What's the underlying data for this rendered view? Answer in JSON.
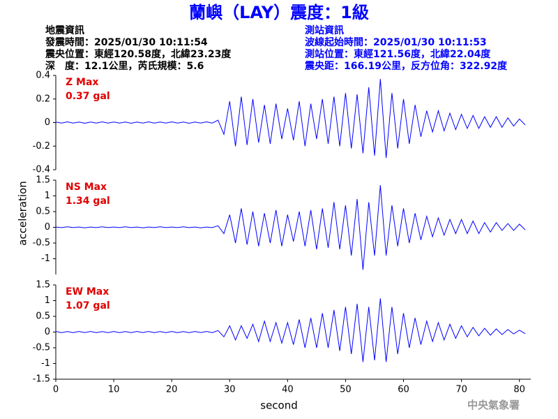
{
  "header": {
    "title": "蘭嶼（LAY）震度：1級",
    "left": [
      "地震資訊",
      "發震時間：2025/01/30 10:11:54",
      "震央位置：東經120.58度，北緯23.23度",
      "深　度：12.1公里，芮氏規模：5.6"
    ],
    "right": [
      "測站資訊",
      "波線起始時間：2025/01/30 10:11:53",
      "測站位置：東經121.56度，北緯22.04度",
      "震央距：166.19公里，反方位角：322.92度"
    ]
  },
  "footer": "中央氣象署",
  "chart_data": [
    {
      "type": "line",
      "annotations": [
        "Z Max",
        "0.37 gal"
      ],
      "color": "#0000ff",
      "xlim": [
        0,
        81
      ],
      "ylim": [
        -0.4,
        0.4
      ],
      "yticks": [
        0.4,
        0.2,
        0,
        -0.2,
        -0.4
      ],
      "x": [
        0,
        1,
        2,
        3,
        4,
        5,
        6,
        7,
        8,
        9,
        10,
        11,
        12,
        13,
        14,
        15,
        16,
        17,
        18,
        19,
        20,
        21,
        22,
        23,
        24,
        25,
        26,
        27,
        28,
        29,
        30,
        31,
        32,
        33,
        34,
        35,
        36,
        37,
        38,
        39,
        40,
        41,
        42,
        43,
        44,
        45,
        46,
        47,
        48,
        49,
        50,
        51,
        52,
        53,
        54,
        55,
        56,
        57,
        58,
        59,
        60,
        61,
        62,
        63,
        64,
        65,
        66,
        67,
        68,
        69,
        70,
        71,
        72,
        73,
        74,
        75,
        76,
        77,
        78,
        79,
        80,
        81
      ],
      "values": [
        0.004,
        -0.005,
        0.006,
        -0.004,
        0.005,
        -0.006,
        0.004,
        -0.005,
        0.006,
        -0.004,
        0.005,
        -0.005,
        0.004,
        -0.006,
        0.005,
        -0.004,
        0.006,
        -0.005,
        0.004,
        -0.005,
        0.006,
        -0.004,
        0.005,
        -0.006,
        0.004,
        -0.005,
        0.006,
        -0.004,
        0.02,
        -0.1,
        0.18,
        -0.2,
        0.22,
        -0.19,
        0.2,
        -0.17,
        0.15,
        -0.18,
        0.16,
        -0.14,
        0.12,
        -0.15,
        0.18,
        -0.2,
        0.16,
        -0.14,
        0.2,
        -0.18,
        0.22,
        -0.2,
        0.25,
        -0.22,
        0.24,
        -0.26,
        0.3,
        -0.28,
        0.37,
        -0.3,
        0.25,
        -0.22,
        0.2,
        -0.18,
        0.15,
        -0.12,
        0.1,
        -0.08,
        0.1,
        -0.07,
        0.08,
        -0.06,
        0.07,
        -0.05,
        0.06,
        -0.05,
        0.05,
        -0.04,
        0.05,
        -0.04,
        0.04,
        -0.03,
        0.03,
        -0.02
      ]
    },
    {
      "type": "line",
      "annotations": [
        "NS Max",
        "1.34 gal"
      ],
      "y_label": "acceleration",
      "color": "#0000ff",
      "xlim": [
        0,
        81
      ],
      "ylim": [
        -1.5,
        1.5
      ],
      "yticks": [
        1.5,
        1,
        0.5,
        0,
        -0.5,
        -1
      ],
      "x": [
        0,
        1,
        2,
        3,
        4,
        5,
        6,
        7,
        8,
        9,
        10,
        11,
        12,
        13,
        14,
        15,
        16,
        17,
        18,
        19,
        20,
        21,
        22,
        23,
        24,
        25,
        26,
        27,
        28,
        29,
        30,
        31,
        32,
        33,
        34,
        35,
        36,
        37,
        38,
        39,
        40,
        41,
        42,
        43,
        44,
        45,
        46,
        47,
        48,
        49,
        50,
        51,
        52,
        53,
        54,
        55,
        56,
        57,
        58,
        59,
        60,
        61,
        62,
        63,
        64,
        65,
        66,
        67,
        68,
        69,
        70,
        71,
        72,
        73,
        74,
        75,
        76,
        77,
        78,
        79,
        80,
        81
      ],
      "values": [
        0.01,
        -0.01,
        0.015,
        -0.01,
        0.01,
        -0.015,
        0.01,
        -0.01,
        0.015,
        -0.01,
        0.01,
        -0.01,
        0.015,
        -0.01,
        0.01,
        -0.015,
        0.01,
        -0.01,
        0.015,
        -0.01,
        0.01,
        -0.01,
        0.015,
        -0.01,
        0.01,
        -0.015,
        0.01,
        -0.01,
        0.05,
        -0.2,
        0.4,
        -0.5,
        0.6,
        -0.55,
        0.5,
        -0.6,
        0.45,
        -0.5,
        0.55,
        -0.6,
        0.4,
        -0.45,
        0.5,
        -0.6,
        0.55,
        -0.7,
        0.6,
        -0.65,
        0.8,
        -0.7,
        0.7,
        -0.9,
        0.9,
        -1.35,
        0.8,
        -0.9,
        1.34,
        -0.9,
        0.7,
        -0.6,
        0.6,
        -0.5,
        0.45,
        -0.4,
        0.35,
        -0.3,
        0.3,
        -0.25,
        0.25,
        -0.2,
        0.25,
        -0.2,
        0.2,
        -0.2,
        0.15,
        -0.15,
        0.15,
        -0.1,
        0.12,
        -0.1,
        0.1,
        -0.08
      ]
    },
    {
      "type": "line",
      "annotations": [
        "EW Max",
        "1.07 gal"
      ],
      "x_label": "second",
      "color": "#0000ff",
      "xlim": [
        0,
        81
      ],
      "ylim": [
        -1.5,
        1.5
      ],
      "yticks": [
        1.5,
        1,
        0.5,
        0,
        -0.5,
        -1,
        -1.5
      ],
      "xticks": [
        0,
        10,
        20,
        30,
        40,
        50,
        60,
        70,
        80
      ],
      "x": [
        0,
        1,
        2,
        3,
        4,
        5,
        6,
        7,
        8,
        9,
        10,
        11,
        12,
        13,
        14,
        15,
        16,
        17,
        18,
        19,
        20,
        21,
        22,
        23,
        24,
        25,
        26,
        27,
        28,
        29,
        30,
        31,
        32,
        33,
        34,
        35,
        36,
        37,
        38,
        39,
        40,
        41,
        42,
        43,
        44,
        45,
        46,
        47,
        48,
        49,
        50,
        51,
        52,
        53,
        54,
        55,
        56,
        57,
        58,
        59,
        60,
        61,
        62,
        63,
        64,
        65,
        66,
        67,
        68,
        69,
        70,
        71,
        72,
        73,
        74,
        75,
        76,
        77,
        78,
        79,
        80,
        81
      ],
      "values": [
        0.02,
        -0.02,
        0.015,
        -0.02,
        0.02,
        -0.015,
        0.02,
        -0.02,
        0.015,
        -0.02,
        0.02,
        -0.02,
        0.015,
        -0.02,
        0.02,
        -0.015,
        0.02,
        -0.02,
        0.015,
        -0.02,
        0.02,
        -0.02,
        0.015,
        -0.02,
        0.02,
        -0.015,
        0.02,
        -0.02,
        0.05,
        -0.15,
        0.2,
        -0.25,
        0.2,
        -0.2,
        0.25,
        -0.3,
        0.35,
        -0.3,
        0.3,
        -0.35,
        0.3,
        -0.4,
        0.4,
        -0.5,
        0.45,
        -0.5,
        0.6,
        -0.5,
        0.7,
        -0.6,
        0.8,
        -0.7,
        0.9,
        -0.95,
        0.8,
        -0.9,
        1.07,
        -0.95,
        0.8,
        -0.7,
        0.6,
        -0.5,
        0.45,
        -0.4,
        0.35,
        -0.3,
        0.3,
        -0.25,
        0.25,
        -0.2,
        0.2,
        -0.15,
        0.15,
        -0.12,
        0.12,
        -0.1,
        0.1,
        -0.08,
        0.08,
        -0.06,
        0.06,
        -0.05
      ]
    }
  ]
}
